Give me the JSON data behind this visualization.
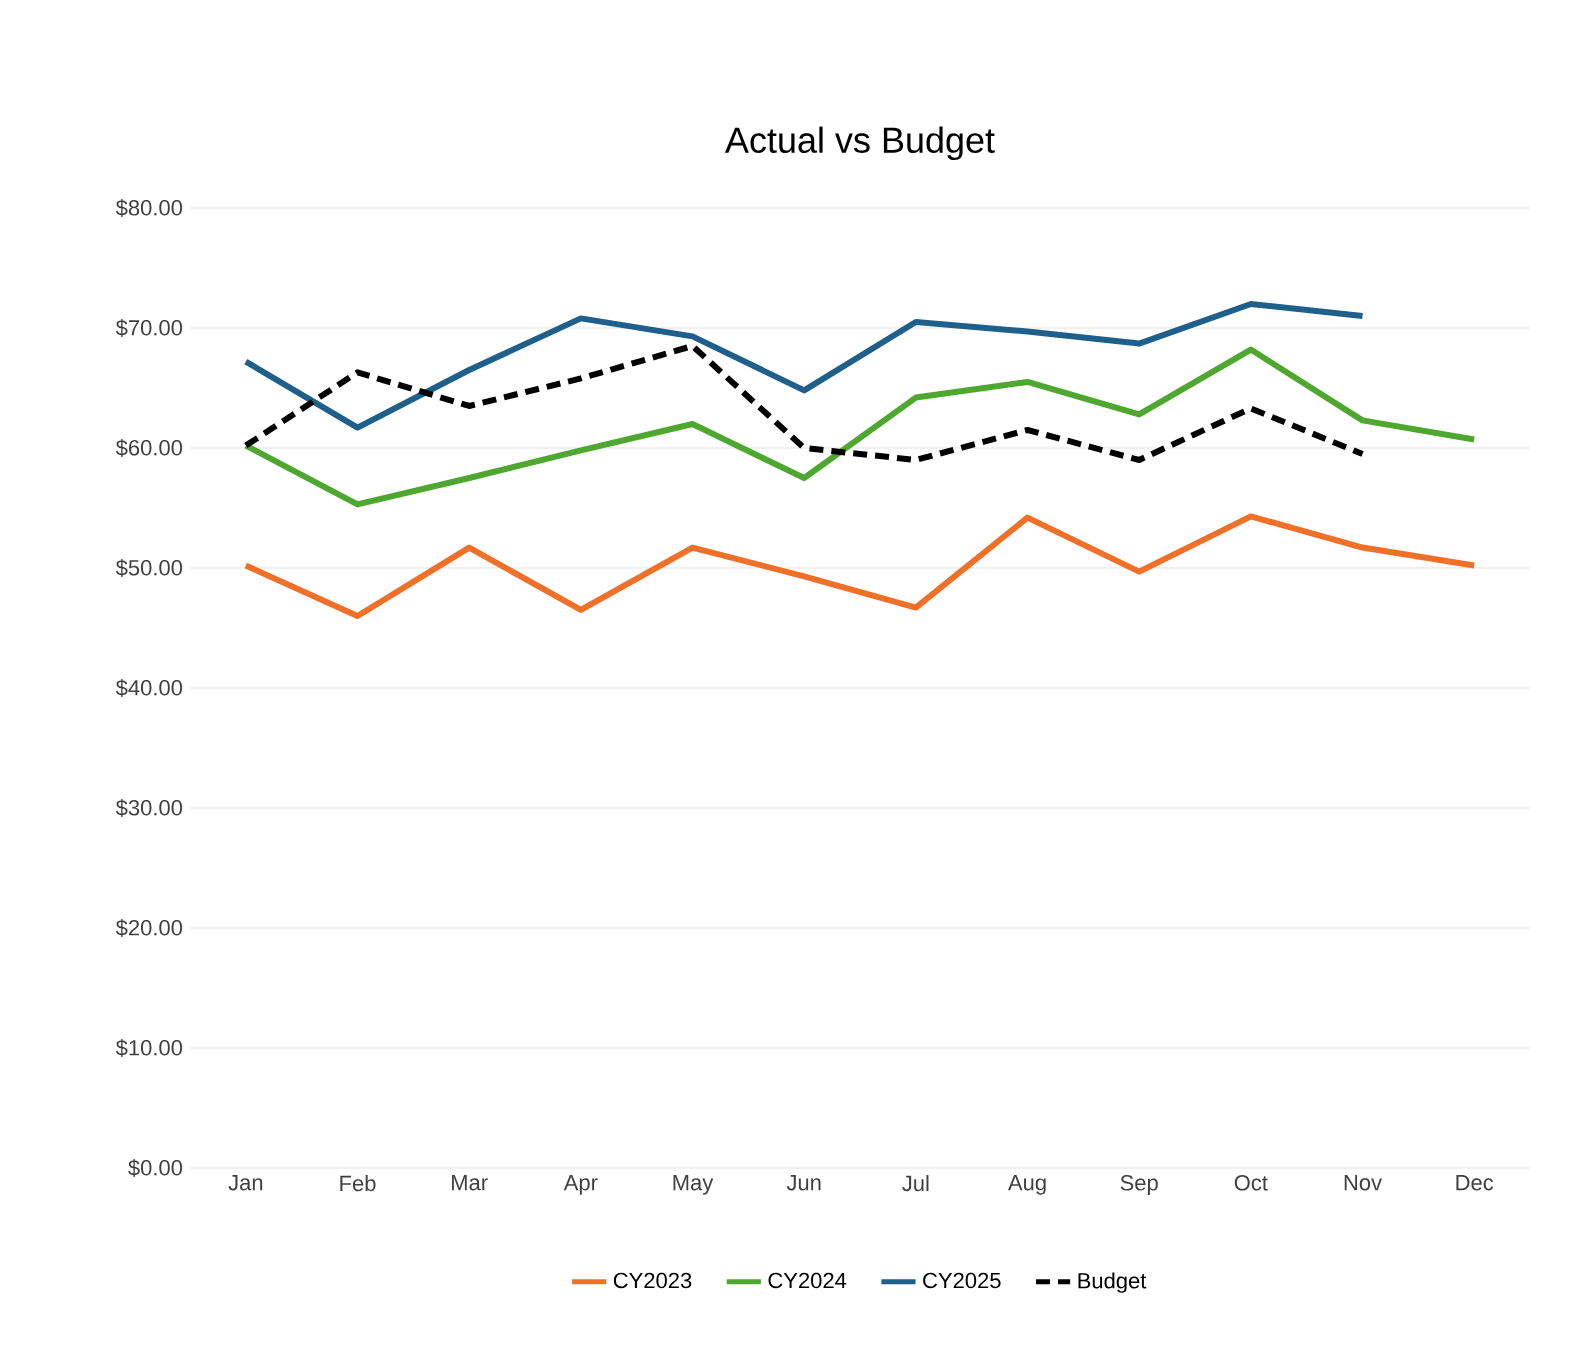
{
  "chart_data": {
    "type": "line",
    "title": "Actual vs Budget",
    "categories": [
      "Jan",
      "Feb",
      "Mar",
      "Apr",
      "May",
      "Jun",
      "Jul",
      "Aug",
      "Sep",
      "Oct",
      "Nov",
      "Dec"
    ],
    "series": [
      {
        "name": "CY2023",
        "color": "#f07028",
        "values": [
          50.2,
          46.0,
          51.7,
          46.5,
          51.7,
          49.3,
          46.7,
          54.2,
          49.7,
          54.3,
          51.7,
          50.2
        ]
      },
      {
        "name": "CY2024",
        "color": "#4ea72e",
        "values": [
          60.2,
          55.3,
          57.5,
          59.8,
          62.0,
          57.5,
          64.2,
          65.5,
          62.8,
          68.2,
          62.3,
          60.7
        ]
      },
      {
        "name": "CY2025",
        "color": "#1f5f8b",
        "values": [
          67.2,
          61.7,
          66.5,
          70.8,
          69.3,
          64.8,
          70.5,
          69.7,
          68.7,
          72.0,
          71.0,
          null
        ]
      },
      {
        "name": "Budget",
        "color": "#000000",
        "line_style": "dashed",
        "values": [
          60.2,
          66.3,
          63.5,
          65.8,
          68.5,
          60.0,
          59.0,
          61.5,
          59.0,
          63.3,
          59.5,
          null
        ]
      }
    ],
    "ylim": [
      0,
      80
    ],
    "yticks": [
      {
        "value": 0,
        "label": "$0.00"
      },
      {
        "value": 10,
        "label": "$10.00"
      },
      {
        "value": 20,
        "label": "$20.00"
      },
      {
        "value": 30,
        "label": "$30.00"
      },
      {
        "value": 40,
        "label": "$40.00"
      },
      {
        "value": 50,
        "label": "$50.00"
      },
      {
        "value": 60,
        "label": "$60.00"
      },
      {
        "value": 70,
        "label": "$70.00"
      },
      {
        "value": 80,
        "label": "$80.00"
      }
    ],
    "grid": "y",
    "legend": "bottom",
    "marker": "none"
  }
}
